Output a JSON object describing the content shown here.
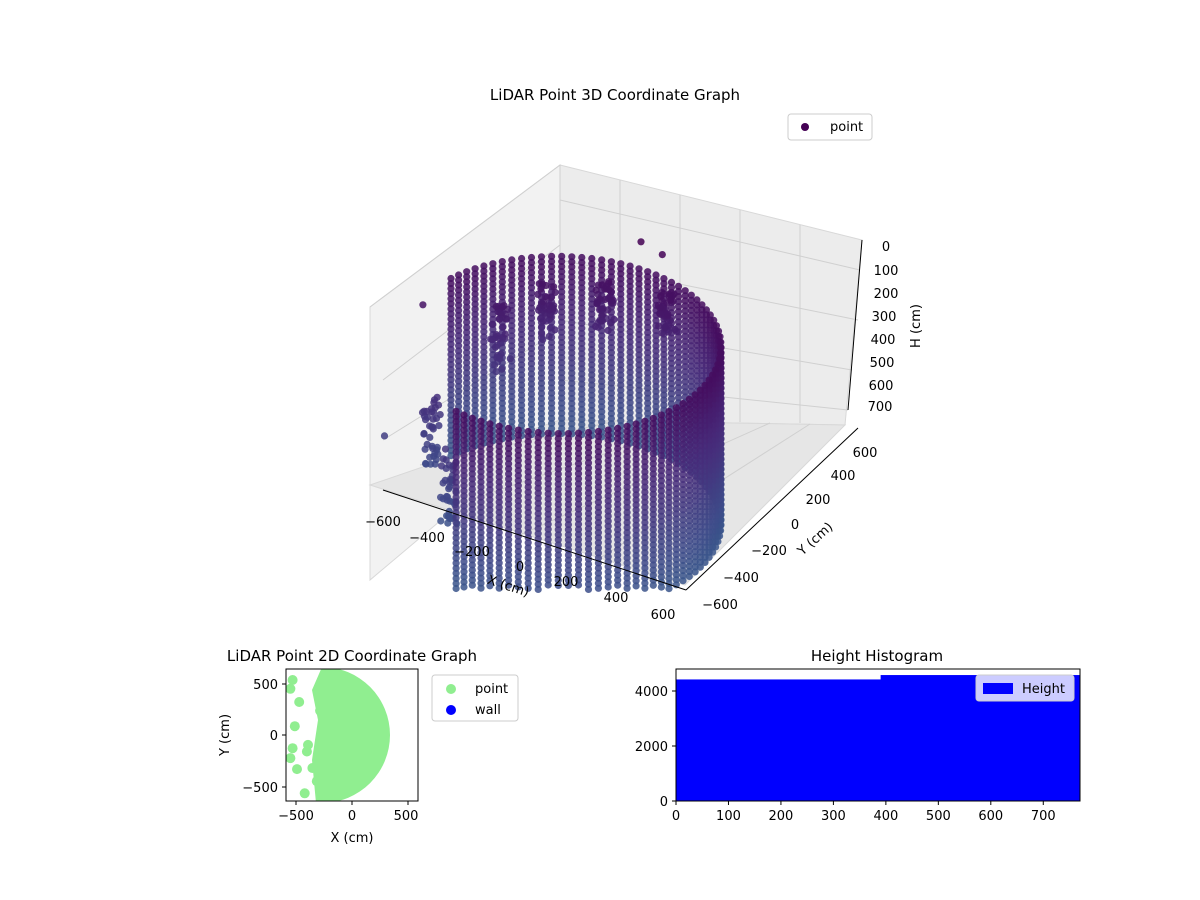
{
  "chart_data": [
    {
      "type": "scatter",
      "title": "LiDAR Point 3D Coordinate Graph",
      "xlabel": "X (cm)",
      "ylabel": "Y (cm)",
      "zlabel": "H (cm)",
      "xlim": [
        -650,
        650
      ],
      "ylim": [
        -650,
        650
      ],
      "zlim": [
        780,
        0
      ],
      "x_ticks": [
        "−600",
        "−400",
        "−200",
        "0",
        "200",
        "400",
        "600"
      ],
      "y_ticks": [
        "−600",
        "−400",
        "−200",
        "0",
        "200",
        "400",
        "600"
      ],
      "z_ticks": [
        "0",
        "100",
        "200",
        "300",
        "400",
        "500",
        "600",
        "700"
      ],
      "legend": [
        {
          "name": "point",
          "color": "#440154"
        }
      ],
      "legend_position": "top-right",
      "grid": true,
      "colormap": "viridis",
      "series": [
        {
          "name": "point",
          "cylinder_wall": {
            "center": [
              0,
              0
            ],
            "radius": 600,
            "height_range": [
              0,
              780
            ],
            "arc_deg": [
              -100,
              165
            ]
          },
          "inner_clusters": [
            {
              "x": -420,
              "y": 280,
              "h_range": [
                100,
                400
              ]
            },
            {
              "x": -300,
              "y": 420,
              "h_range": [
                60,
                300
              ]
            },
            {
              "x": -100,
              "y": 500,
              "h_range": [
                40,
                250
              ]
            },
            {
              "x": 150,
              "y": 540,
              "h_range": [
                20,
                200
              ]
            },
            {
              "x": -500,
              "y": -100,
              "h_range": [
                350,
                650
              ]
            },
            {
              "x": -300,
              "y": -300,
              "h_range": [
                400,
                720
              ]
            }
          ],
          "outliers": [
            {
              "x": 0,
              "y": 600,
              "h": -120
            },
            {
              "x": 80,
              "y": 620,
              "h": -80
            },
            {
              "x": -620,
              "y": 50,
              "h": 60
            },
            {
              "x": -640,
              "y": -200,
              "h": 500
            }
          ]
        }
      ]
    },
    {
      "type": "scatter",
      "title": "LiDAR Point 2D Coordinate Graph",
      "xlabel": "X (cm)",
      "ylabel": "Y (cm)",
      "xlim": [
        -600,
        600
      ],
      "ylim": [
        -600,
        600
      ],
      "x_ticks": [
        "−500",
        "0",
        "500"
      ],
      "y_ticks": [
        "500",
        "0",
        "−500"
      ],
      "legend": [
        {
          "name": "point",
          "color": "#90ee90"
        },
        {
          "name": "wall",
          "color": "#0000ff"
        }
      ],
      "legend_position": "outside-right",
      "series": [
        {
          "name": "point",
          "region": "disk radius 600 centered at origin, filled for x > about -200"
        },
        {
          "name": "point",
          "scatter": [
            {
              "x": -540,
              "y": 500
            },
            {
              "x": -560,
              "y": 420
            },
            {
              "x": -480,
              "y": 300
            },
            {
              "x": -520,
              "y": 80
            },
            {
              "x": -540,
              "y": -120
            },
            {
              "x": -500,
              "y": -310
            },
            {
              "x": -410,
              "y": -150
            },
            {
              "x": -360,
              "y": -300
            },
            {
              "x": -280,
              "y": -80
            },
            {
              "x": -300,
              "y": -330
            },
            {
              "x": -230,
              "y": -120
            },
            {
              "x": -290,
              "y": 220
            },
            {
              "x": -400,
              "y": -90
            },
            {
              "x": -320,
              "y": -420
            },
            {
              "x": -560,
              "y": -210
            },
            {
              "x": -430,
              "y": -530
            }
          ]
        }
      ]
    },
    {
      "type": "bar",
      "title": "Height Histogram",
      "xlabel": "",
      "ylabel": "",
      "xlim": [
        0,
        770
      ],
      "ylim": [
        0,
        4800
      ],
      "x_ticks": [
        "0",
        "100",
        "200",
        "300",
        "400",
        "500",
        "600",
        "700"
      ],
      "y_ticks": [
        "0",
        "2000",
        "4000"
      ],
      "legend": [
        {
          "name": "Height",
          "color": "#0000ff"
        }
      ],
      "legend_position": "top-right",
      "bins": [
        {
          "from": 0,
          "to": 390,
          "count": 4420
        },
        {
          "from": 390,
          "to": 770,
          "count": 4580
        }
      ],
      "series": [
        {
          "name": "Height",
          "color": "#0000ff"
        }
      ]
    }
  ]
}
